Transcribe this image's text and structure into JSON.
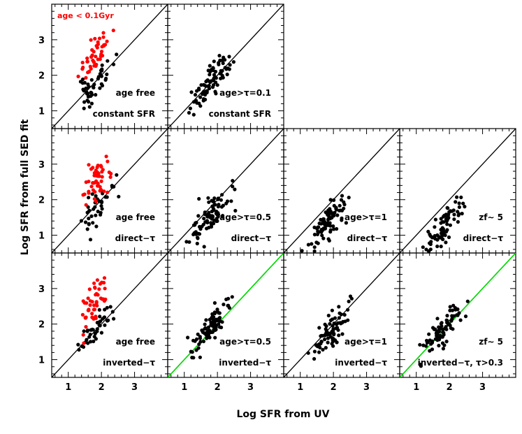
{
  "figure": {
    "xlabel": "Log SFR from UV",
    "ylabel": "Log SFR from full SED fit"
  },
  "chart_data": {
    "type": "scatter",
    "grid": false,
    "xlim": [
      0.5,
      4.0
    ],
    "ylim": [
      0.5,
      4.0
    ],
    "x_ticks": [
      1,
      2,
      3
    ],
    "y_ticks": [
      1,
      2,
      3
    ],
    "reference_line": "y = x",
    "colors": {
      "main": "#000000",
      "young": "#ff0000",
      "green_line": "#00e000"
    },
    "panels": [
      {
        "id": "r1c1",
        "row": 0,
        "col": 0,
        "labels": [
          "age free",
          "constant SFR"
        ],
        "red_label": "age < 0.1Gyr",
        "green_line": false,
        "black_seed": 11,
        "red_seed": 21,
        "black": {
          "count": 46,
          "xmean": 1.8,
          "xsd": 0.28,
          "off": -0.05,
          "sd": 0.22
        },
        "red": {
          "count": 45,
          "xmean": 1.8,
          "xsd": 0.22,
          "off": 0.75,
          "sd": 0.3
        }
      },
      {
        "id": "r1c2",
        "row": 0,
        "col": 1,
        "labels": [
          "age>τ=0.1",
          "constant SFR"
        ],
        "green_line": false,
        "black_seed": 12,
        "black": {
          "count": 85,
          "xmean": 1.8,
          "xsd": 0.3,
          "off": 0.02,
          "sd": 0.2
        }
      },
      {
        "id": "r2c1",
        "row": 1,
        "col": 0,
        "labels": [
          "age free",
          "direct−τ"
        ],
        "green_line": false,
        "black_seed": 13,
        "red_seed": 23,
        "black": {
          "count": 42,
          "xmean": 1.8,
          "xsd": 0.28,
          "off": -0.1,
          "sd": 0.25
        },
        "red": {
          "count": 48,
          "xmean": 1.8,
          "xsd": 0.22,
          "off": 0.65,
          "sd": 0.35
        }
      },
      {
        "id": "r2c2",
        "row": 1,
        "col": 1,
        "labels": [
          "age>τ=0.5",
          "direct−τ"
        ],
        "green_line": false,
        "black_seed": 14,
        "black": {
          "count": 85,
          "xmean": 1.8,
          "xsd": 0.3,
          "off": -0.25,
          "sd": 0.25
        }
      },
      {
        "id": "r2c3",
        "row": 1,
        "col": 2,
        "labels": [
          "age>τ=1",
          "direct−τ"
        ],
        "green_line": false,
        "black_seed": 15,
        "black": {
          "count": 85,
          "xmean": 1.85,
          "xsd": 0.3,
          "off": -0.45,
          "sd": 0.25
        }
      },
      {
        "id": "r2c4",
        "row": 1,
        "col": 3,
        "labels": [
          "zf∼ 5",
          "direct−τ"
        ],
        "green_line": false,
        "black_seed": 16,
        "black": {
          "count": 80,
          "xmean": 1.85,
          "xsd": 0.3,
          "off": -0.6,
          "sd": 0.25
        }
      },
      {
        "id": "r3c1",
        "row": 2,
        "col": 0,
        "labels": [
          "age free",
          "inverted−τ"
        ],
        "green_line": false,
        "black_seed": 17,
        "red_seed": 27,
        "black": {
          "count": 42,
          "xmean": 1.8,
          "xsd": 0.25,
          "off": 0.05,
          "sd": 0.2
        },
        "red": {
          "count": 48,
          "xmean": 1.8,
          "xsd": 0.22,
          "off": 0.8,
          "sd": 0.3
        }
      },
      {
        "id": "r3c2",
        "row": 2,
        "col": 1,
        "labels": [
          "age>τ=0.5",
          "inverted−τ"
        ],
        "green_line": true,
        "black_seed": 18,
        "black": {
          "count": 85,
          "xmean": 1.8,
          "xsd": 0.3,
          "off": 0.1,
          "sd": 0.2
        }
      },
      {
        "id": "r3c3",
        "row": 2,
        "col": 2,
        "labels": [
          "age>τ=1",
          "inverted−τ"
        ],
        "green_line": false,
        "black_seed": 19,
        "black": {
          "count": 85,
          "xmean": 1.85,
          "xsd": 0.28,
          "off": -0.15,
          "sd": 0.22
        }
      },
      {
        "id": "r3c4",
        "row": 2,
        "col": 3,
        "labels": [
          "zf∼ 5",
          "inverted−τ, τ>0.3"
        ],
        "green_line": true,
        "black_seed": 20,
        "black": {
          "count": 85,
          "xmean": 1.8,
          "xsd": 0.3,
          "off": 0.05,
          "sd": 0.2
        }
      }
    ]
  }
}
